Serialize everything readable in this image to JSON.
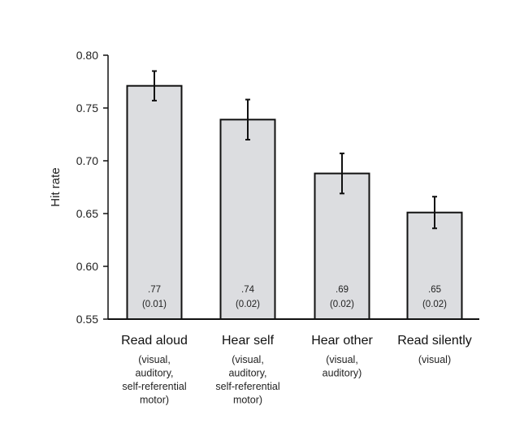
{
  "chart_data": {
    "type": "bar",
    "ylabel": "Hit rate",
    "ylim": [
      0.55,
      0.8
    ],
    "yticks": [
      "0.80",
      "0.75",
      "0.70",
      "0.65",
      "0.60",
      "0.55"
    ],
    "grid": false,
    "categories": [
      "Read aloud",
      "Hear self",
      "Hear other",
      "Read silently"
    ],
    "sublabels": [
      [
        "(visual,",
        "auditory,",
        "self-referential",
        "motor)"
      ],
      [
        "(visual,",
        "auditory,",
        "self-referential",
        "motor)"
      ],
      [
        "(visual,",
        "auditory)"
      ],
      [
        "(visual)"
      ]
    ],
    "values": [
      0.771,
      0.739,
      0.688,
      0.651
    ],
    "error": [
      0.014,
      0.019,
      0.019,
      0.015
    ],
    "data_labels": [
      [
        ".77",
        "(0.01)"
      ],
      [
        ".74",
        "(0.02)"
      ],
      [
        ".69",
        "(0.02)"
      ],
      [
        ".65",
        "(0.02)"
      ]
    ],
    "colors": {
      "bar_fill": "#dcdde0",
      "bar_stroke": "#111111",
      "axis": "#111111"
    }
  }
}
